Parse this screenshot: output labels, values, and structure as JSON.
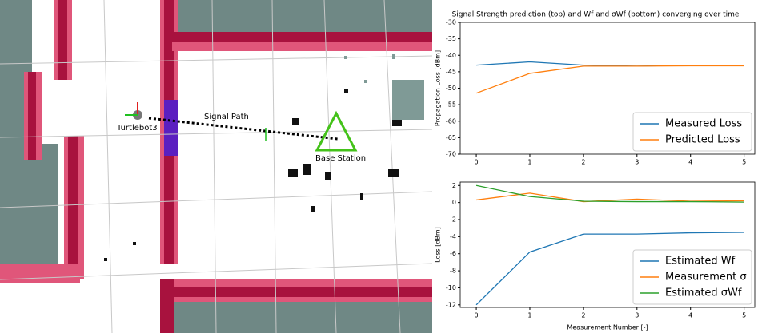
{
  "map": {
    "labels": [
      "Turtlebot3",
      "Signal Path",
      "Base Station"
    ]
  },
  "chart_data": [
    {
      "type": "line",
      "title": "Signal Strength prediction (top) and Wf and σWf (bottom) converging over time",
      "ylabel": "Propagation Loss [dBm]",
      "x": [
        0,
        1,
        2,
        3,
        4,
        5
      ],
      "series": [
        {
          "name": "Measured Loss",
          "color": "#1f77b4",
          "values": [
            -43,
            -42,
            -43,
            -43.3,
            -43,
            -43
          ]
        },
        {
          "name": "Predicted Loss",
          "color": "#ff7f0e",
          "values": [
            -51.5,
            -45.5,
            -43.3,
            -43.3,
            -43.2,
            -43.2
          ]
        }
      ],
      "xlim": [
        -0.3,
        5.2
      ],
      "xticks": [
        0,
        1,
        2,
        3,
        4,
        5
      ],
      "ylim": [
        -70,
        -30
      ],
      "yticks": [
        -70,
        -65,
        -60,
        -55,
        -50,
        -45,
        -40,
        -35,
        -30
      ],
      "legend": "lower right"
    },
    {
      "type": "line",
      "xlabel": "Measurement Number [-]",
      "ylabel": "Loss [dBm]",
      "x": [
        0,
        1,
        2,
        3,
        4,
        5
      ],
      "series": [
        {
          "name": "Estimated Wf",
          "color": "#1f77b4",
          "values": [
            -12,
            -5.8,
            -3.7,
            -3.7,
            -3.55,
            -3.5
          ]
        },
        {
          "name": "Measurement σ",
          "color": "#ff7f0e",
          "values": [
            0.3,
            1.1,
            0.1,
            0.4,
            0.15,
            0.2
          ]
        },
        {
          "name": "Estimated σWf",
          "color": "#2ca02c",
          "values": [
            2.0,
            0.7,
            0.15,
            0.1,
            0.1,
            0.05
          ]
        }
      ],
      "xlim": [
        -0.3,
        5.2
      ],
      "xticks": [
        0,
        1,
        2,
        3,
        4,
        5
      ],
      "ylim": [
        -12.3,
        2.4
      ],
      "yticks": [
        -12,
        -10,
        -8,
        -6,
        -4,
        -2,
        0,
        2
      ],
      "legend": "lower right"
    }
  ]
}
